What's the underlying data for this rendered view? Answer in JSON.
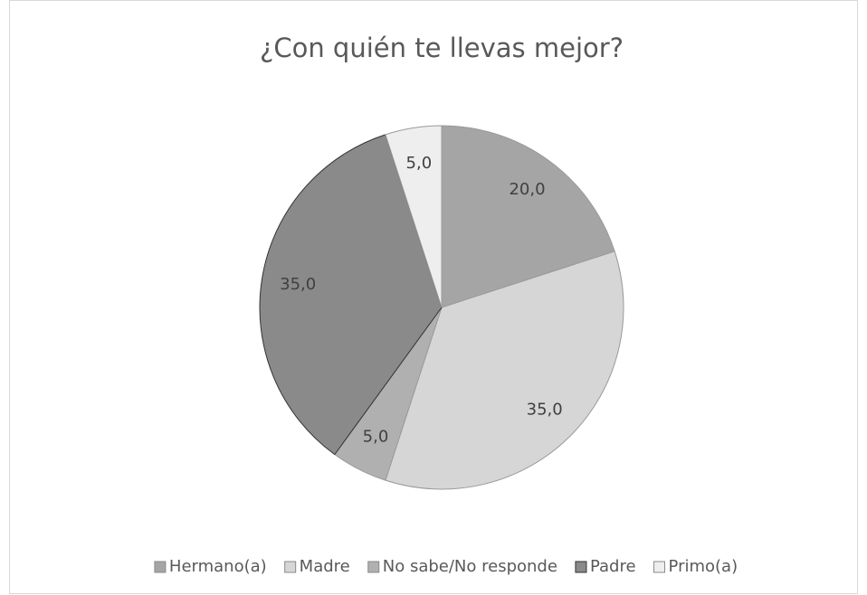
{
  "chart_data": {
    "type": "pie",
    "title": "¿Con quién te llevas mejor?",
    "categories": [
      "Hermano(a)",
      "Madre",
      "No sabe/No responde",
      "Padre",
      "Primo(a)"
    ],
    "values": [
      20,
      35,
      5,
      35,
      5
    ],
    "value_labels": [
      "20,0",
      "35,0",
      "5,0",
      "35,0",
      "5,0"
    ],
    "colors": [
      "#a5a5a5",
      "#d6d6d6",
      "#b0b0b0",
      "#8a8a8a",
      "#eeeeee"
    ],
    "legend": "bottom"
  }
}
